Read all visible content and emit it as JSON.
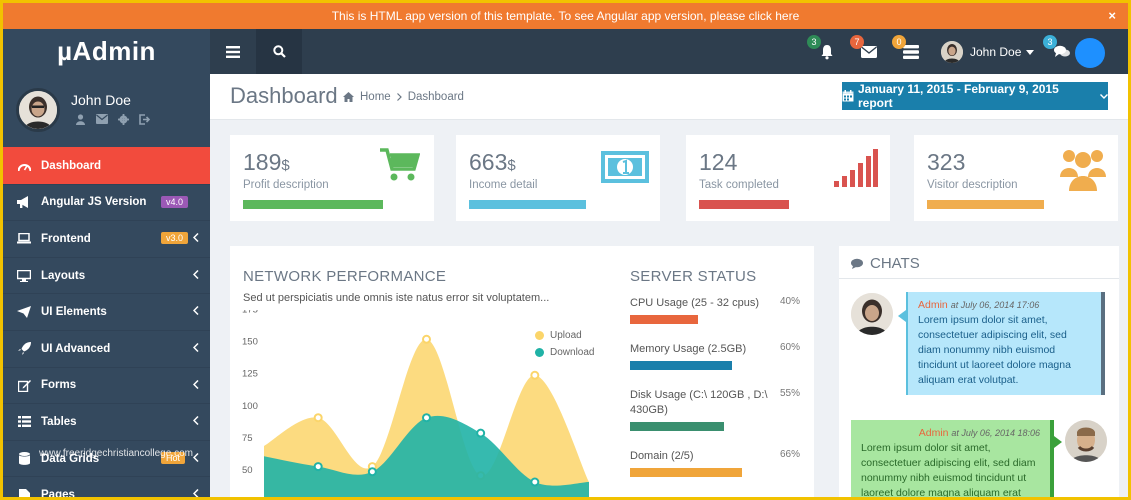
{
  "banner": {
    "text": "This is HTML app version of this template. To see Angular app version, please click here",
    "close": "×"
  },
  "header": {
    "brand": "µAdmin",
    "notifications": [
      {
        "icon": "bell-icon",
        "count": "3",
        "color": "#2e8b57"
      },
      {
        "icon": "envelope-icon",
        "count": "7",
        "color": "#e8663d"
      },
      {
        "icon": "tasks-icon",
        "count": "0",
        "color": "#f0a53a"
      }
    ],
    "user_name": "John Doe",
    "chat_badge": "3"
  },
  "sidebar": {
    "user_name": "John Doe",
    "items": [
      {
        "label": "Dashboard",
        "icon": "dashboard-icon",
        "tag": "",
        "chevron": false,
        "active": true
      },
      {
        "label": "Angular JS Version",
        "icon": "bullhorn-icon",
        "tag": "v4.0",
        "tag_color": "#9b59b6",
        "chevron": false
      },
      {
        "label": "Frontend",
        "icon": "laptop-icon",
        "tag": "v3.0",
        "tag_color": "#f0a53a",
        "chevron": true
      },
      {
        "label": "Layouts",
        "icon": "desktop-icon",
        "tag": "",
        "chevron": true
      },
      {
        "label": "UI Elements",
        "icon": "paper-plane-icon",
        "tag": "",
        "chevron": true
      },
      {
        "label": "UI Advanced",
        "icon": "rocket-icon",
        "tag": "",
        "chevron": true
      },
      {
        "label": "Forms",
        "icon": "edit-icon",
        "tag": "",
        "chevron": true
      },
      {
        "label": "Tables",
        "icon": "list-icon",
        "tag": "",
        "chevron": true
      },
      {
        "label": "Data Grids",
        "icon": "database-icon",
        "tag": "Hot",
        "tag_color": "#f0a53a",
        "chevron": true
      },
      {
        "label": "Pages",
        "icon": "file-icon",
        "tag": "",
        "chevron": true
      }
    ]
  },
  "page": {
    "title": "Dashboard",
    "breadcrumb_home": "Home",
    "breadcrumb_current": "Dashboard",
    "report_button": "January 11, 2015 - February 9, 2015 report"
  },
  "stats": [
    {
      "value": "189",
      "unit": "$",
      "desc": "Profit description",
      "color": "#5cb85c",
      "icon": "cart-icon",
      "progress": 0.72
    },
    {
      "value": "663",
      "unit": "$",
      "desc": "Income detail",
      "color": "#5bc0de",
      "icon": "money-icon",
      "progress": 0.6
    },
    {
      "value": "124",
      "unit": "",
      "desc": "Task completed",
      "color": "#d9534f",
      "icon": "signal-icon",
      "progress": 0.46
    },
    {
      "value": "323",
      "unit": "",
      "desc": "Visitor description",
      "color": "#f0ad4e",
      "icon": "users-icon",
      "progress": 0.6
    }
  ],
  "network": {
    "title": "NETWORK PERFORMANCE",
    "subtitle": "Sed ut perspiciatis unde omnis iste natus error sit voluptatem...",
    "legend_upload": "Upload",
    "legend_download": "Download"
  },
  "chart_data": {
    "type": "area",
    "yticks": [
      "175",
      "150",
      "125",
      "100",
      "75",
      "50"
    ],
    "ylim": [
      40,
      180
    ],
    "series": [
      {
        "name": "Upload",
        "color": "#fbd56a",
        "points": [
          [
            0,
            68
          ],
          [
            1,
            90
          ],
          [
            2,
            52
          ],
          [
            3,
            151
          ],
          [
            4,
            45
          ],
          [
            5,
            123
          ],
          [
            6,
            40
          ]
        ]
      },
      {
        "name": "Download",
        "color": "#20b2a6",
        "points": [
          [
            0,
            60
          ],
          [
            1,
            52
          ],
          [
            2,
            48
          ],
          [
            3,
            90
          ],
          [
            4,
            78
          ],
          [
            5,
            40
          ],
          [
            6,
            40
          ]
        ]
      }
    ],
    "xlim": [
      0,
      6
    ]
  },
  "server": {
    "title": "SERVER STATUS",
    "rows": [
      {
        "label": "CPU Usage (25 - 32 cpus)",
        "pct": "40%",
        "value": 0.4,
        "color": "#e8663d"
      },
      {
        "label": "Memory Usage (2.5GB)",
        "pct": "60%",
        "value": 0.6,
        "color": "#1a7fab"
      },
      {
        "label": "Disk Usage (C:\\ 120GB , D:\\ 430GB)",
        "pct": "55%",
        "value": 0.55,
        "color": "#3a8f6f"
      },
      {
        "label": "Domain (2/5)",
        "pct": "66%",
        "value": 0.66,
        "color": "#f0a53a"
      }
    ]
  },
  "chats": {
    "title": "CHATS",
    "messages": [
      {
        "author": "Admin",
        "time": "at July 06, 2014 17:06",
        "text": "Lorem ipsum dolor sit amet, consectetuer adipiscing elit, sed diam nonummy nibh euismod tincidunt ut laoreet dolore magna aliquam erat volutpat.",
        "bg": "#b6e7fb",
        "edge": "#5a6f80"
      },
      {
        "author": "Admin",
        "time": "at July 06, 2014 18:06",
        "text": "Lorem ipsum dolor sit amet, consectetuer adipiscing elit, sed diam nonummy nibh euismod tincidunt ut laoreet dolore magna aliquam erat",
        "bg": "#a8e6a0",
        "edge": "#3aa03a"
      }
    ]
  },
  "watermark": "www.freeridgechristiancollege.com"
}
